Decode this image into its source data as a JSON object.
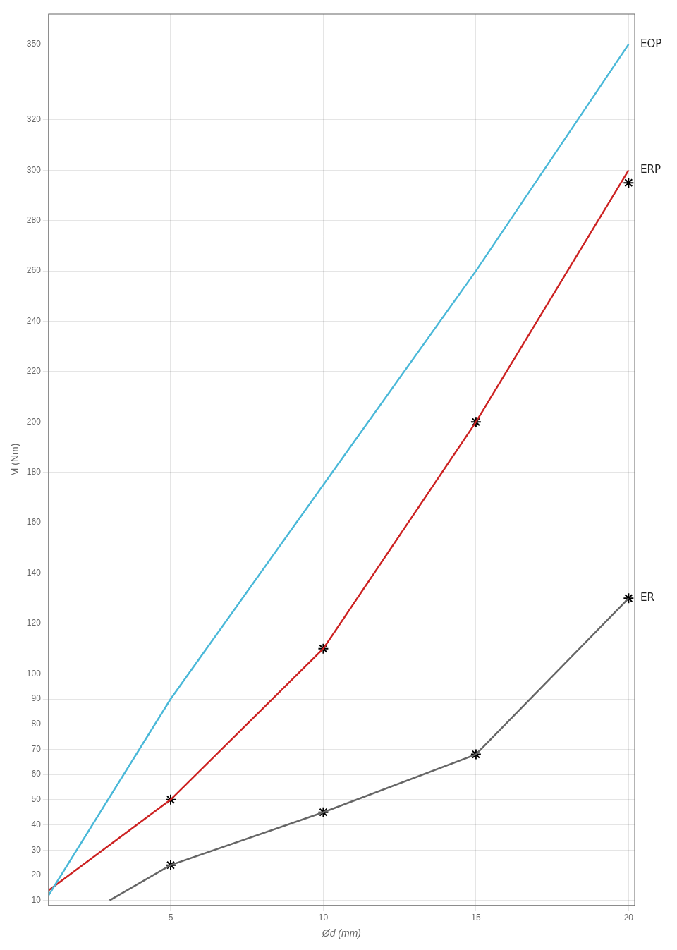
{
  "chart_data": {
    "type": "line",
    "x_label": "Ød (mm)",
    "y_label": "M (Nm)",
    "series": [
      {
        "name": "EOP",
        "type": "line",
        "color": "#4ab8d8",
        "x": [
          1,
          5,
          10,
          15,
          20
        ],
        "values": [
          12,
          90,
          175,
          260,
          350
        ]
      },
      {
        "name": "ERP",
        "type": "line",
        "color": "#cc2222",
        "x": [
          1,
          5,
          10,
          15,
          20
        ],
        "values": [
          14,
          50,
          110,
          200,
          300
        ]
      },
      {
        "type": "scatter",
        "marker": "star",
        "color": "#000000",
        "x": [
          5,
          10,
          15,
          20
        ],
        "values": [
          50,
          110,
          200,
          295
        ]
      },
      {
        "name": "ER",
        "type": "line",
        "color": "#666666",
        "x": [
          3,
          5,
          10,
          15,
          20
        ],
        "values": [
          10,
          24,
          45,
          68,
          130
        ]
      },
      {
        "type": "scatter",
        "marker": "star",
        "color": "#000000",
        "x": [
          5,
          10,
          15,
          20
        ],
        "values": [
          24,
          45,
          68,
          130
        ]
      }
    ],
    "xlim": [
      1,
      20.2
    ],
    "xticks": [
      5,
      10,
      15,
      20
    ],
    "ylim": [
      8,
      362
    ],
    "yticks": [
      10,
      20,
      30,
      40,
      50,
      60,
      70,
      80,
      90,
      100,
      120,
      140,
      160,
      180,
      200,
      220,
      240,
      260,
      280,
      300,
      320,
      350
    ],
    "grid": true
  }
}
